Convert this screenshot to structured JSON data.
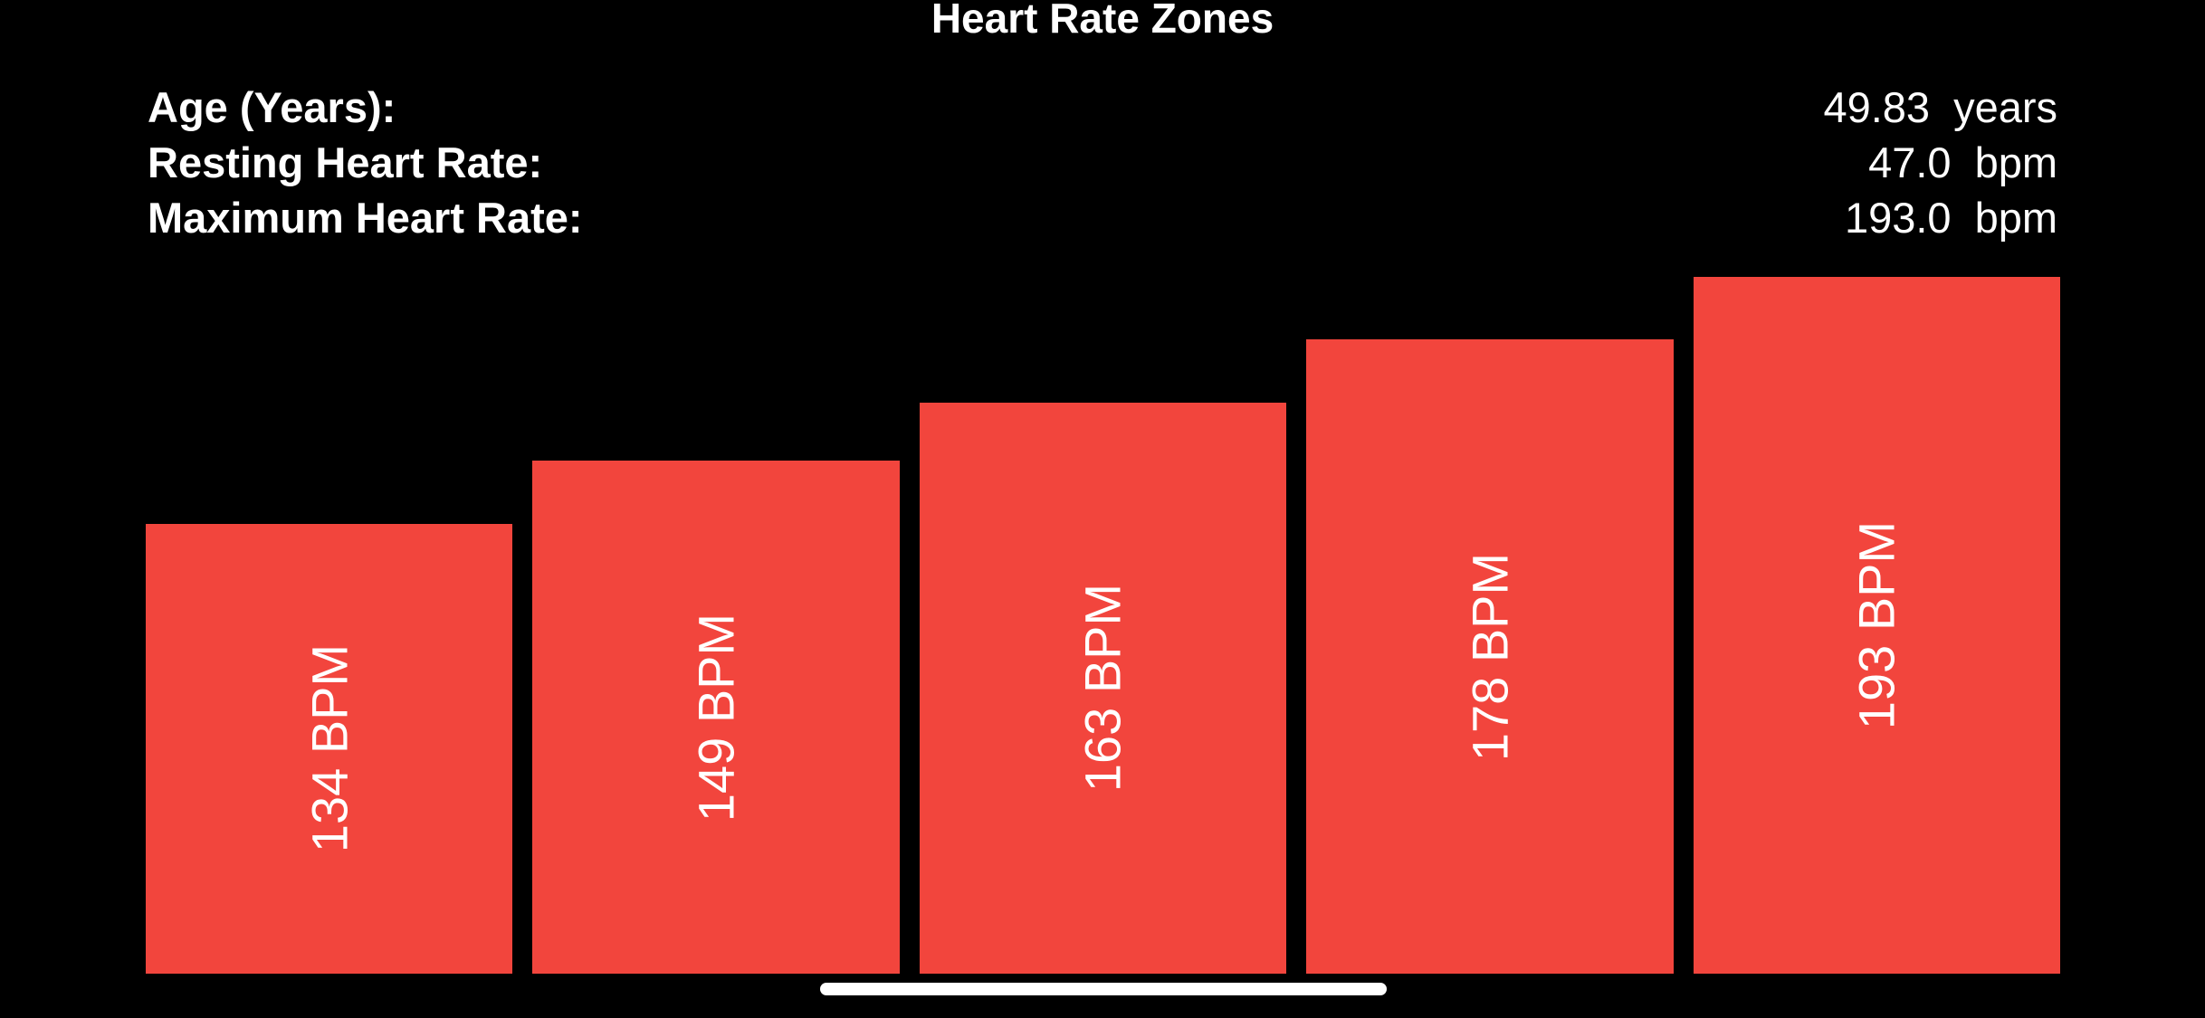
{
  "title": "Heart Rate Zones",
  "stats": [
    {
      "label": "Age (Years):",
      "value": "49.83",
      "unit": "years"
    },
    {
      "label": "Resting Heart Rate:",
      "value": "47.0",
      "unit": "bpm"
    },
    {
      "label": "Maximum Heart Rate:",
      "value": "193.0",
      "unit": "bpm"
    }
  ],
  "chart_data": {
    "type": "bar",
    "orientation": "vertical",
    "bar_color": "#f2453d",
    "categories": [
      "134 BPM",
      "149 BPM",
      "163 BPM",
      "178 BPM",
      "193 BPM"
    ],
    "values": [
      134,
      149,
      163,
      178,
      193
    ],
    "value_labels": [
      "134 BPM",
      "149 BPM",
      "163 BPM",
      "178 BPM",
      "193 BPM"
    ]
  },
  "colors": {
    "background": "#000000",
    "text": "#ffffff",
    "bar": "#f2453d",
    "home_indicator": "#ffffff"
  }
}
